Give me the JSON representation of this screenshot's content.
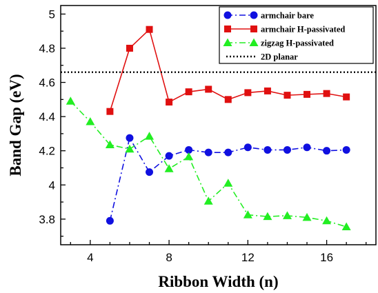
{
  "chart_data": {
    "type": "line",
    "title": "",
    "xlabel": "Ribbon Width (n)",
    "ylabel": "Band Gap (eV)",
    "xlim": [
      2.5,
      18.5
    ],
    "ylim": [
      3.65,
      5.05
    ],
    "x_ticks": [
      4,
      8,
      12,
      16
    ],
    "x_tick_labels": [
      "4",
      "8",
      "12",
      "16"
    ],
    "y_ticks": [
      3.8,
      4,
      4.2,
      4.4,
      4.6,
      4.8,
      5
    ],
    "y_tick_labels": [
      "3.8",
      "4",
      "4.2",
      "4.4",
      "4.6",
      "4.8",
      "5"
    ],
    "grid": false,
    "legend_position": "top-right",
    "series": [
      {
        "name": "armchair bare",
        "color": "#1010e0",
        "marker": "circle",
        "line_style": "dash-dot",
        "x": [
          5,
          6,
          7,
          8,
          9,
          10,
          11,
          12,
          13,
          14,
          15,
          16,
          17
        ],
        "y": [
          3.79,
          4.275,
          4.075,
          4.17,
          4.205,
          4.19,
          4.19,
          4.22,
          4.205,
          4.205,
          4.22,
          4.2,
          4.205
        ]
      },
      {
        "name": "armchair H-passivated",
        "color": "#e01010",
        "marker": "square",
        "line_style": "solid",
        "x": [
          5,
          6,
          7,
          8,
          9,
          10,
          11,
          12,
          13,
          14,
          15,
          16,
          17
        ],
        "y": [
          4.43,
          4.8,
          4.91,
          4.485,
          4.545,
          4.56,
          4.5,
          4.54,
          4.55,
          4.525,
          4.53,
          4.535,
          4.515
        ]
      },
      {
        "name": "zigzag H-passivated",
        "color": "#22ee22",
        "marker": "triangle",
        "line_style": "dash-dot",
        "x": [
          3,
          4,
          5,
          6,
          7,
          8,
          9,
          10,
          11,
          12,
          13,
          14,
          15,
          16,
          17
        ],
        "y": [
          4.49,
          4.37,
          4.235,
          4.21,
          4.285,
          4.095,
          4.165,
          3.905,
          4.01,
          3.825,
          3.815,
          3.82,
          3.81,
          3.79,
          3.755
        ]
      },
      {
        "name": "2D planar",
        "color": "#000000",
        "marker": "none",
        "line_style": "dotted",
        "y_constant": 4.66
      }
    ]
  }
}
